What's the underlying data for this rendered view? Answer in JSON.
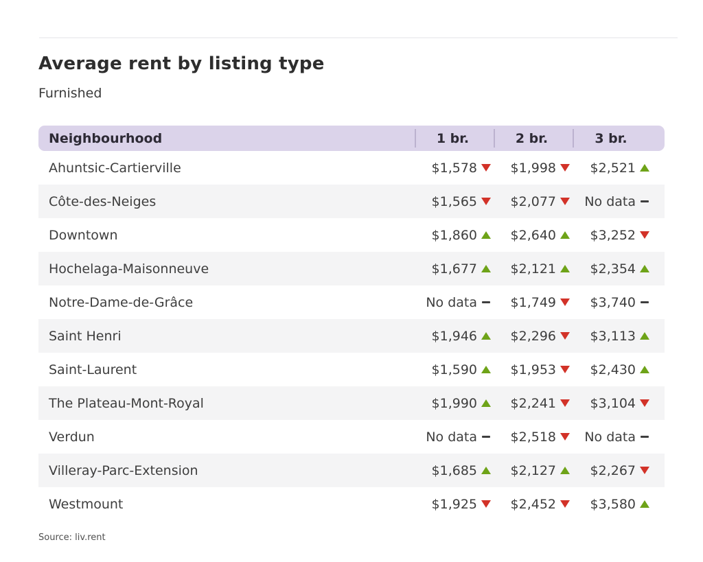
{
  "page": {
    "title": "Average rent by listing type",
    "subtitle": "Furnished",
    "source": "Source: liv.rent"
  },
  "table": {
    "columns": [
      "Neighbourhood",
      "1 br.",
      "2 br.",
      "3 br."
    ],
    "rows": [
      {
        "name": "Ahuntsic-Cartierville",
        "cells": [
          {
            "value": "$1,578",
            "trend": "down"
          },
          {
            "value": "$1,998",
            "trend": "down"
          },
          {
            "value": "$2,521",
            "trend": "up"
          }
        ]
      },
      {
        "name": "Côte-des-Neiges",
        "cells": [
          {
            "value": "$1,565",
            "trend": "down"
          },
          {
            "value": "$2,077",
            "trend": "down"
          },
          {
            "value": "No data",
            "trend": "none"
          }
        ]
      },
      {
        "name": "Downtown",
        "cells": [
          {
            "value": "$1,860",
            "trend": "up"
          },
          {
            "value": "$2,640",
            "trend": "up"
          },
          {
            "value": "$3,252",
            "trend": "down"
          }
        ]
      },
      {
        "name": "Hochelaga-Maisonneuve",
        "cells": [
          {
            "value": "$1,677",
            "trend": "up"
          },
          {
            "value": "$2,121",
            "trend": "up"
          },
          {
            "value": "$2,354",
            "trend": "up"
          }
        ]
      },
      {
        "name": "Notre-Dame-de-Grâce",
        "cells": [
          {
            "value": "No data",
            "trend": "none"
          },
          {
            "value": "$1,749",
            "trend": "down"
          },
          {
            "value": "$3,740",
            "trend": "none"
          }
        ]
      },
      {
        "name": "Saint Henri",
        "cells": [
          {
            "value": "$1,946",
            "trend": "up"
          },
          {
            "value": "$2,296",
            "trend": "down"
          },
          {
            "value": "$3,113",
            "trend": "up"
          }
        ]
      },
      {
        "name": "Saint-Laurent",
        "cells": [
          {
            "value": "$1,590",
            "trend": "up"
          },
          {
            "value": "$1,953",
            "trend": "down"
          },
          {
            "value": "$2,430",
            "trend": "up"
          }
        ]
      },
      {
        "name": "The Plateau-Mont-Royal",
        "cells": [
          {
            "value": "$1,990",
            "trend": "up"
          },
          {
            "value": "$2,241",
            "trend": "down"
          },
          {
            "value": "$3,104",
            "trend": "down"
          }
        ]
      },
      {
        "name": "Verdun",
        "cells": [
          {
            "value": "No data",
            "trend": "none"
          },
          {
            "value": "$2,518",
            "trend": "down"
          },
          {
            "value": "No data",
            "trend": "none"
          }
        ]
      },
      {
        "name": "Villeray-Parc-Extension",
        "cells": [
          {
            "value": "$1,685",
            "trend": "up"
          },
          {
            "value": "$2,127",
            "trend": "up"
          },
          {
            "value": "$2,267",
            "trend": "down"
          }
        ]
      },
      {
        "name": "Westmount",
        "cells": [
          {
            "value": "$1,925",
            "trend": "down"
          },
          {
            "value": "$2,452",
            "trend": "down"
          },
          {
            "value": "$3,580",
            "trend": "up"
          }
        ]
      }
    ]
  },
  "icons": {
    "up": "trend-up-triangle-icon",
    "down": "trend-down-triangle-icon",
    "none": "no-change-dash-icon"
  },
  "colors": {
    "header_bg": "#dbd3ea",
    "row_alt_bg": "#f4f4f5",
    "trend_up": "#6ea318",
    "trend_down": "#d23228",
    "text": "#3e3e3e"
  }
}
